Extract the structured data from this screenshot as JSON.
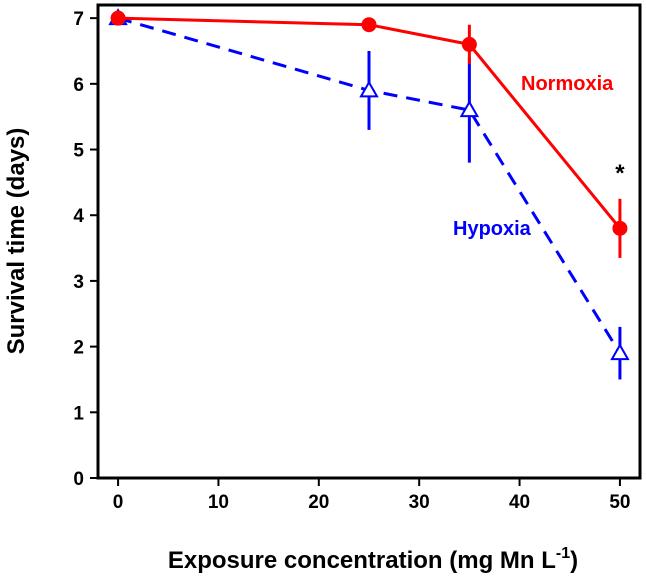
{
  "chart_data": {
    "type": "line",
    "title": "",
    "xlabel": "Exposure concentration (mg Mn L",
    "xlabel_superscript": "-1",
    "xlabel_suffix": ")",
    "ylabel": "Survival time (days)",
    "xlim": [
      -2,
      52
    ],
    "ylim": [
      0,
      7.2
    ],
    "x_ticks": [
      0,
      10,
      20,
      30,
      40,
      50
    ],
    "y_ticks": [
      0,
      1,
      2,
      3,
      4,
      5,
      6,
      7
    ],
    "x_tick_labels": [
      "0",
      "10",
      "20",
      "30",
      "40",
      "50"
    ],
    "y_tick_labels": [
      "0",
      "1",
      "2",
      "3",
      "4",
      "5",
      "6",
      "7"
    ],
    "grid": false,
    "series": [
      {
        "name": "Normoxia",
        "color": "#ff0000",
        "line_style": "solid",
        "marker": "filled-circle",
        "x": [
          0,
          25,
          35,
          50
        ],
        "y": [
          7.0,
          6.9,
          6.6,
          3.8
        ],
        "error": [
          0,
          0,
          0.3,
          0.45
        ]
      },
      {
        "name": "Hypoxia",
        "color": "#0000ff",
        "line_style": "dashed",
        "marker": "open-triangle",
        "x": [
          0,
          25,
          35,
          50
        ],
        "y": [
          7.0,
          5.9,
          5.6,
          1.9
        ],
        "error": [
          0,
          0.6,
          0.8,
          0.4
        ]
      }
    ],
    "annotations": [
      {
        "text": "*",
        "x": 50,
        "y": 4.7
      }
    ]
  }
}
